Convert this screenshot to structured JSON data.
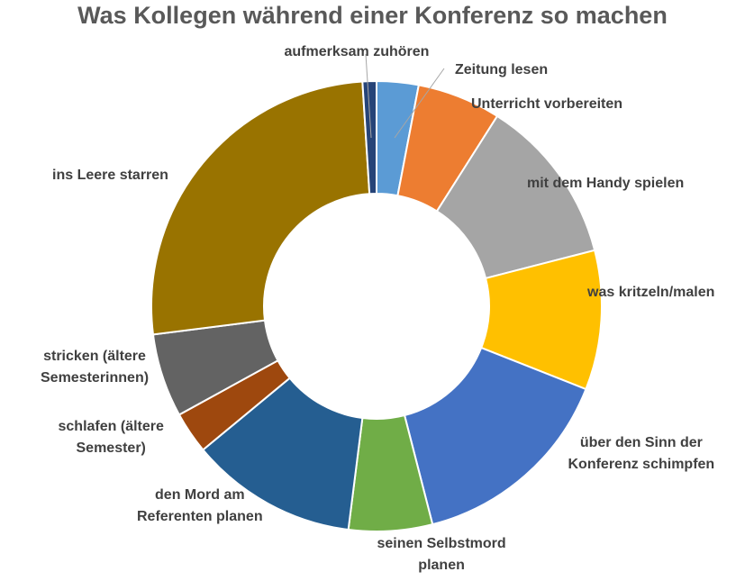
{
  "chart_data": {
    "type": "pie",
    "title": "Was Kollegen während einer Konferenz so machen",
    "donut": true,
    "legend": "none (data labels beside slices)",
    "slices": [
      {
        "label": "Zeitung lesen",
        "value": 3,
        "color": "#5B9BD5"
      },
      {
        "label": "Unterricht vorbereiten",
        "value": 6,
        "color": "#ED7D31"
      },
      {
        "label": "mit dem Handy spielen",
        "value": 12,
        "color": "#A5A5A5"
      },
      {
        "label": "was kritzeln/malen",
        "value": 10,
        "color": "#FFC000"
      },
      {
        "label": "über den Sinn der Konferenz schimpfen",
        "label_lines": [
          "über den Sinn der",
          "Konferenz schimpfen"
        ],
        "value": 15,
        "color": "#4472C4"
      },
      {
        "label": "seinen Selbstmord planen",
        "label_lines": [
          "seinen Selbstmord",
          "planen"
        ],
        "value": 6,
        "color": "#70AD47"
      },
      {
        "label": "den Mord am Referenten planen",
        "label_lines": [
          "den Mord am",
          "Referenten planen"
        ],
        "value": 12,
        "color": "#255E91"
      },
      {
        "label": "schlafen (ältere Semester)",
        "label_lines": [
          "schlafen (ältere",
          "Semester)"
        ],
        "value": 3,
        "color": "#9E480E"
      },
      {
        "label": "stricken (ältere Semesterinnen)",
        "label_lines": [
          "stricken (ältere",
          "Semesterinnen)"
        ],
        "value": 6,
        "color": "#636363"
      },
      {
        "label": "ins Leere starren",
        "value": 26,
        "color": "#997300"
      },
      {
        "label": "aufmerksam zuhören",
        "value": 1,
        "color": "#264478"
      }
    ]
  }
}
